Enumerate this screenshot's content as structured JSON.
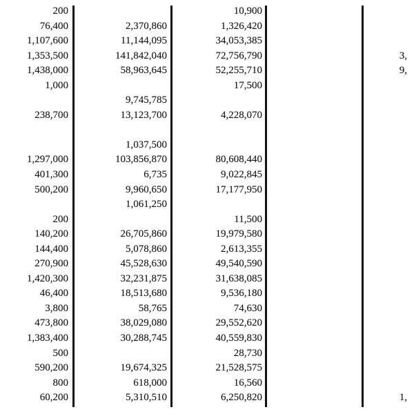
{
  "colors": {
    "background": "#ffffff",
    "text": "#1a1a1a",
    "divider": "#111111"
  },
  "table": {
    "description": "scanned ledger page with four numeric columns separated by vertical rules; fourth column truncated at right edge",
    "rows": [
      {
        "c1": "200",
        "c2": "",
        "c3": "10,900",
        "c4": ""
      },
      {
        "c1": "76,400",
        "c2": "2,370,860",
        "c3": "1,326,420",
        "c4": ""
      },
      {
        "c1": "1,107,600",
        "c2": "11,144,095",
        "c3": "34,053,385",
        "c4": ""
      },
      {
        "c1": "1,353,500",
        "c2": "141,842,040",
        "c3": "72,756,790",
        "c4": "3,"
      },
      {
        "c1": "1,438,000",
        "c2": "58,963,645",
        "c3": "52,255,710",
        "c4": "9,"
      },
      {
        "c1": "1,000",
        "c2": "",
        "c3": "17,500",
        "c4": ""
      },
      {
        "c1": "",
        "c2": "9,745,785",
        "c3": "",
        "c4": ""
      },
      {
        "c1": "238,700",
        "c2": "13,123,700",
        "c3": "4,228,070",
        "c4": ""
      },
      {
        "c1": "",
        "c2": "",
        "c3": "",
        "c4": ""
      },
      {
        "c1": "",
        "c2": "1,037,500",
        "c3": "",
        "c4": ""
      },
      {
        "c1": "1,297,000",
        "c2": "103,856,870",
        "c3": "80,608,440",
        "c4": ""
      },
      {
        "c1": "401,300",
        "c2": "6,735",
        "c3": "9,022,845",
        "c4": ""
      },
      {
        "c1": "500,200",
        "c2": "9,960,650",
        "c3": "17,177,950",
        "c4": ""
      },
      {
        "c1": "",
        "c2": "1,061,250",
        "c3": "",
        "c4": ""
      },
      {
        "c1": "200",
        "c2": "",
        "c3": "11,500",
        "c4": ""
      },
      {
        "c1": "140,200",
        "c2": "26,705,860",
        "c3": "19,979,580",
        "c4": ""
      },
      {
        "c1": "144,400",
        "c2": "5,078,860",
        "c3": "2,613,355",
        "c4": ""
      },
      {
        "c1": "270,900",
        "c2": "45,528,630",
        "c3": "49,540,590",
        "c4": ""
      },
      {
        "c1": "1,420,300",
        "c2": "32,231,875",
        "c3": "31,638,085",
        "c4": ""
      },
      {
        "c1": "46,400",
        "c2": "18,513,680",
        "c3": "9,536,180",
        "c4": ""
      },
      {
        "c1": "3,800",
        "c2": "58,765",
        "c3": "74,630",
        "c4": ""
      },
      {
        "c1": "473,800",
        "c2": "38,029,080",
        "c3": "29,552,620",
        "c4": ""
      },
      {
        "c1": "1,383,400",
        "c2": "30,288,745",
        "c3": "40,559,830",
        "c4": ""
      },
      {
        "c1": "500",
        "c2": "",
        "c3": "28,730",
        "c4": ""
      },
      {
        "c1": "590,200",
        "c2": "19,674,325",
        "c3": "21,528,575",
        "c4": ""
      },
      {
        "c1": "800",
        "c2": "618,000",
        "c3": "16,560",
        "c4": ""
      },
      {
        "c1": "60,200",
        "c2": "5,310,510",
        "c3": "6,250,820",
        "c4": "1,"
      }
    ]
  }
}
